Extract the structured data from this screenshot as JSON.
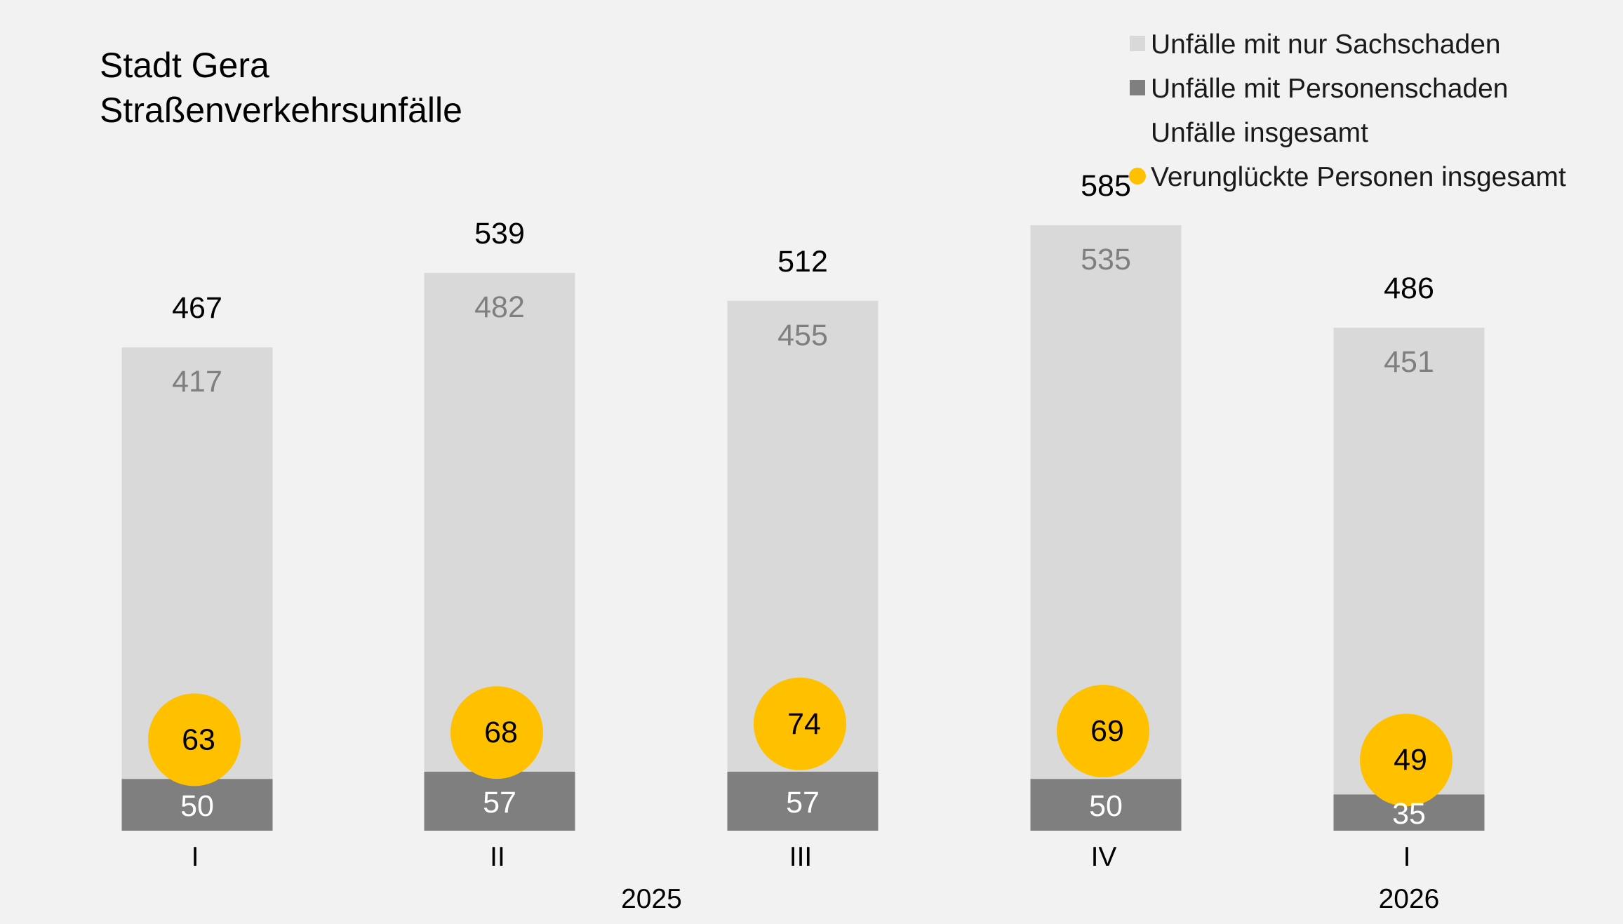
{
  "chart_data": {
    "type": "bar",
    "stacked": true,
    "title_lines": [
      "Stadt Gera",
      "Straßenverkehrsunfälle"
    ],
    "categories": [
      "I",
      "II",
      "III",
      "IV",
      "I"
    ],
    "category_groups": [
      {
        "label": "2025",
        "categories": [
          "I",
          "II",
          "III",
          "IV"
        ]
      },
      {
        "label": "2026",
        "categories": [
          "I"
        ]
      }
    ],
    "series": [
      {
        "name": "Unfälle mit nur Sachschaden",
        "kind": "bar",
        "color": "#d9d9d9",
        "label_color": "#7f7f7f",
        "values": [
          417,
          482,
          455,
          535,
          451
        ]
      },
      {
        "name": "Unfälle mit Personenschaden",
        "kind": "bar",
        "color": "#7f7f7f",
        "label_color": "#ffffff",
        "values": [
          50,
          57,
          57,
          50,
          35
        ]
      },
      {
        "name": "Unfälle insgesamt",
        "kind": "label",
        "color": "#000000",
        "values": [
          467,
          539,
          512,
          585,
          486
        ]
      },
      {
        "name": "Verunglückte Personen insgesamt",
        "kind": "marker",
        "color": "#ffc000",
        "values": [
          63,
          68,
          74,
          69,
          49
        ]
      }
    ],
    "legend": {
      "position": "top-right"
    },
    "grid": false,
    "ylim": [
      0,
      640
    ],
    "marker_ylim": [
      0,
      420
    ]
  }
}
